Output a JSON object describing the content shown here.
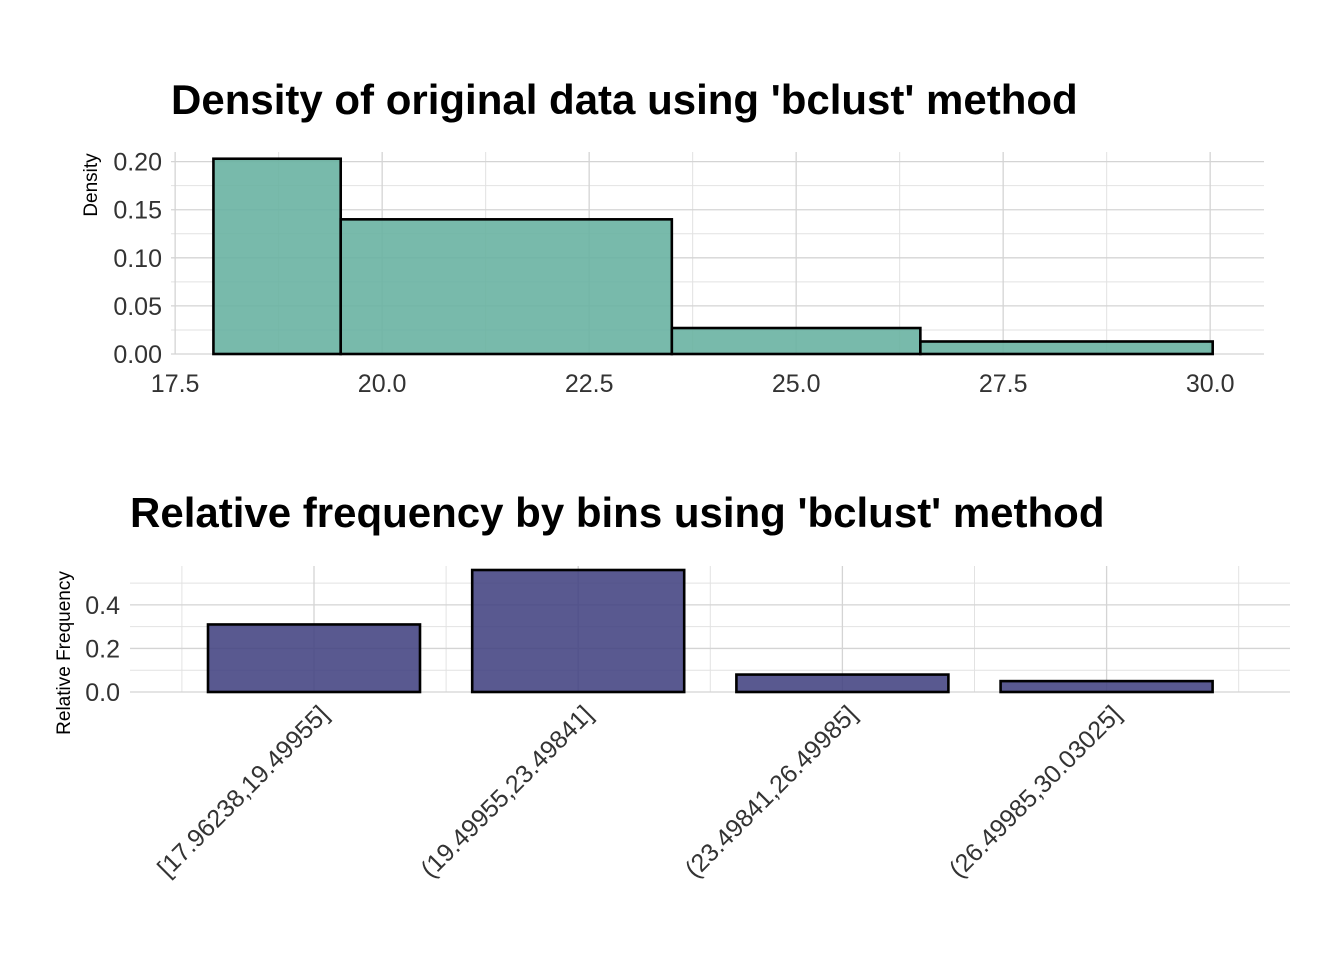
{
  "chart_data": [
    {
      "type": "bar",
      "title": "Density of original data using 'bclust' method",
      "ylabel": "Density",
      "xlabel": "",
      "xlim": [
        17.45,
        30.65
      ],
      "ylim": [
        0,
        0.21
      ],
      "x_ticks": [
        17.5,
        20.0,
        22.5,
        25.0,
        27.5,
        30.0
      ],
      "x_tick_labels": [
        "17.5",
        "20.0",
        "22.5",
        "25.0",
        "27.5",
        "30.0"
      ],
      "y_ticks": [
        0,
        0.05,
        0.1,
        0.15,
        0.2
      ],
      "y_tick_labels": [
        "0.00",
        "0.05",
        "0.10",
        "0.15",
        "0.20"
      ],
      "bins": [
        {
          "start": 17.96238,
          "end": 19.49955,
          "value": 0.203
        },
        {
          "start": 19.49955,
          "end": 23.49841,
          "value": 0.14
        },
        {
          "start": 23.49841,
          "end": 26.49985,
          "value": 0.027
        },
        {
          "start": 26.49985,
          "end": 30.03025,
          "value": 0.013
        }
      ],
      "fill_color": "#69b3a2",
      "grid": true
    },
    {
      "type": "bar",
      "title": "Relative frequency by bins using 'bclust' method",
      "ylabel": "Relative Frequency",
      "xlabel": "",
      "ylim": [
        0,
        0.56
      ],
      "y_ticks": [
        0,
        0.2,
        0.4
      ],
      "y_tick_labels": [
        "0.0",
        "0.2",
        "0.4"
      ],
      "categories": [
        "[17.96238,19.49955]",
        "(19.49955,23.49841]",
        "(23.49841,26.49985]",
        "(26.49985,30.03025]"
      ],
      "values": [
        0.31,
        0.56,
        0.08,
        0.05
      ],
      "fill_color": "#404080",
      "grid": true
    }
  ]
}
